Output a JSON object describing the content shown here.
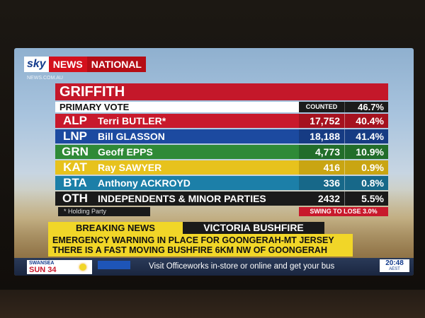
{
  "channel": {
    "sky": "sky",
    "news": "NEWS",
    "national": "NATIONAL",
    "sub_mark": "NEWS.COM.AU"
  },
  "results": {
    "electorate": "GRIFFITH",
    "primary_vote_label": "PRIMARY VOTE",
    "counted_label": "COUNTED",
    "counted_pct": "46.7%",
    "candidates": [
      {
        "code": "ALP",
        "name": "Terri BUTLER*",
        "votes": "17,752",
        "share": "40.4%"
      },
      {
        "code": "LNP",
        "name": "Bill GLASSON",
        "votes": "18,188",
        "share": "41.4%"
      },
      {
        "code": "GRN",
        "name": "Geoff EPPS",
        "votes": "4,773",
        "share": "10.9%"
      },
      {
        "code": "KAT",
        "name": "Ray SAWYER",
        "votes": "416",
        "share": "0.9%"
      },
      {
        "code": "BTA",
        "name": "Anthony ACKROYD",
        "votes": "336",
        "share": "0.8%"
      },
      {
        "code": "OTH",
        "name": "INDEPENDENTS & MINOR PARTIES",
        "votes": "2432",
        "share": "5.5%"
      }
    ],
    "holding_note": "* Holding Party",
    "swing_label": "SWING TO LOSE",
    "swing_value": "3.0%"
  },
  "ticker": {
    "breaking_label": "BREAKING NEWS",
    "story_title": "VICTORIA BUSHFIRE",
    "line1": "EMERGENCY WARNING IN PLACE FOR GOONGERAH-MT JERSEY",
    "line2": "THERE IS A FAST MOVING BUSHFIRE 6KM NW OF GOONGERAH"
  },
  "bottom": {
    "weather_city": "SWANSEA",
    "weather_day_temp": "SUN 34",
    "crawl": "Visit Officeworks in-store or online and get your bus",
    "clock_time": "20:48",
    "clock_tz": "AEST"
  },
  "colors": {
    "alp": "#c8192c",
    "lnp": "#1c4aa0",
    "grn": "#2f8a37",
    "kat": "#e7c21d",
    "bta": "#1c7fa8",
    "oth": "#1a1a1a"
  }
}
